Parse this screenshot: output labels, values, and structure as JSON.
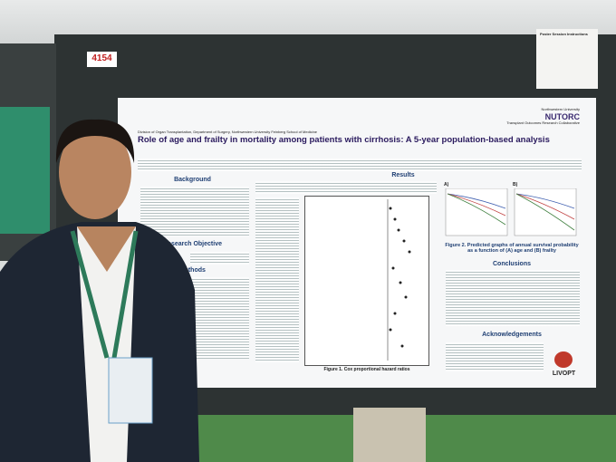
{
  "board_number": "4154",
  "poster": {
    "department": "Division of Organ Transplantation, Department of Surgery, Northwestern University Feinberg School of Medicine",
    "institution": "Northwestern University",
    "logo": "NUTORC",
    "logo_subtitle": "Transplant Outcomes Research Collaborative",
    "title": "Role of age and frailty in mortality among patients with cirrhosis: A 5-year population-based analysis",
    "sections": {
      "background": "Background",
      "objective": "Research Objective",
      "methods": "Methods",
      "results": "Results",
      "conclusions": "Conclusions",
      "acknowledgements": "Acknowledgements"
    },
    "figure_1": "Figure 1. Cox proportional hazard ratios",
    "figure_2": "Figure 2. Predicted graphs of annual survival probability as a function of (A) age and (B) frailty",
    "panel_a": "A)",
    "panel_b": "B)",
    "sponsor_logo": "LIVOPT"
  },
  "side_note": "Poster Session Instructions"
}
